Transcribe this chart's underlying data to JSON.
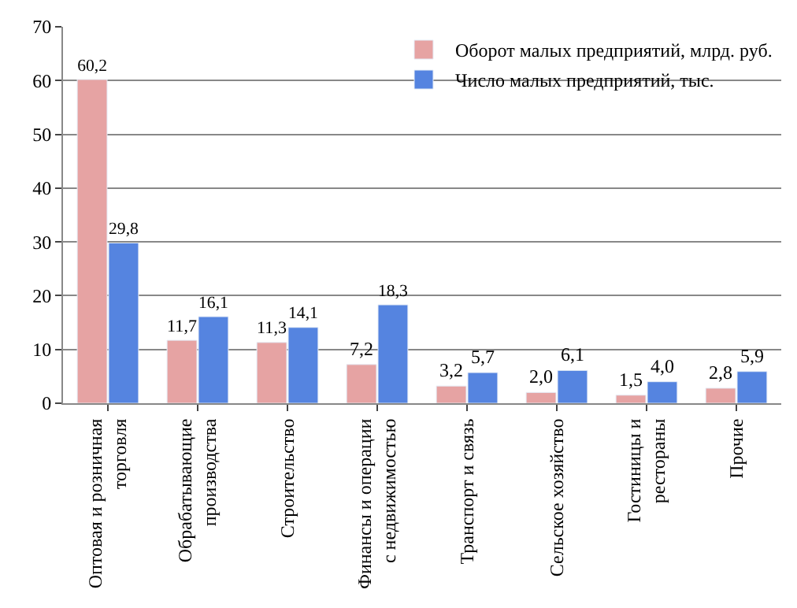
{
  "chart_data": {
    "type": "bar",
    "categories": [
      "Оптовая и розничная торговля",
      "Обрабатывающие производства",
      "Строительство",
      "Финансы и операции с недвижимостью",
      "Транспорт и связь",
      "Сельское хозяйство",
      "Гостиницы и рестораны",
      "Прочие"
    ],
    "series": [
      {
        "name": "Оборот малых предприятий, млрд. руб.",
        "color": "#e6a3a3",
        "values": [
          60.2,
          11.7,
          11.3,
          7.2,
          3.2,
          2.0,
          1.5,
          2.8
        ],
        "value_labels": [
          "60,2",
          "11,7",
          "11,3",
          "7,2",
          "3,2",
          "2,0",
          "1,5",
          "2,8"
        ]
      },
      {
        "name": "Число малых предприятий, тыс.",
        "color": "#5584e0",
        "values": [
          29.8,
          16.1,
          14.1,
          18.3,
          5.7,
          6.1,
          4.0,
          5.9
        ],
        "value_labels": [
          "29,8",
          "16,1",
          "14,1",
          "18,3",
          "5,7",
          "6,1",
          "4,0",
          "5,9"
        ]
      }
    ],
    "ylim": [
      0,
      70
    ],
    "yticks": [
      0,
      10,
      20,
      30,
      40,
      50,
      60,
      70
    ],
    "grid": "y",
    "legend": "top right"
  }
}
